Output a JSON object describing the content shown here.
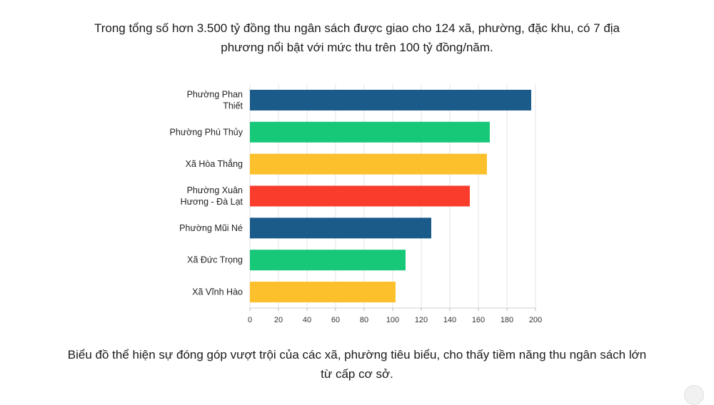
{
  "header": {
    "title": "Trong tổng số hơn 3.500 tỷ đồng thu ngân sách được giao cho 124 xã, phường, đặc khu, có 7 địa phương nổi bật với mức thu trên 100 tỷ đồng/năm."
  },
  "footer": {
    "caption": "Biểu đồ thể hiện sự đóng góp vượt trội của các xã, phường tiêu biểu, cho thấy tiềm năng thu ngân sách lớn từ cấp cơ sở."
  },
  "chart_data": {
    "type": "bar",
    "orientation": "horizontal",
    "categories": [
      [
        "Phường Phan",
        "Thiết"
      ],
      [
        "Phường Phú Thủy"
      ],
      [
        "Xã Hòa Thắng"
      ],
      [
        "Phường Xuân",
        "Hương - Đà Lạt"
      ],
      [
        "Phường Mũi Né"
      ],
      [
        "Xã Đức Trọng"
      ],
      [
        "Xã Vĩnh Hào"
      ]
    ],
    "values": [
      197,
      168,
      166,
      154,
      127,
      109,
      102
    ],
    "colors": [
      "#1a5b8a",
      "#17c878",
      "#fcc02c",
      "#fa3c2d",
      "#1a5b8a",
      "#17c878",
      "#fcc02c"
    ],
    "xlim": [
      0,
      200
    ],
    "xticks": [
      0,
      20,
      40,
      60,
      80,
      100,
      120,
      140,
      160,
      180,
      200
    ],
    "grid": true,
    "title": "",
    "xlabel": "",
    "ylabel": ""
  }
}
